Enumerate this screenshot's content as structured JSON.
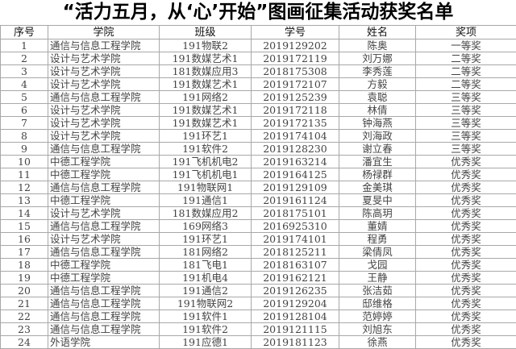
{
  "title": "“活力五月，从‘心’开始”图画征集活动获奖名单",
  "headers": [
    "序号",
    "学院",
    "班级",
    "学号",
    "姓名",
    "奖项"
  ],
  "rows": [
    [
      "1",
      "通信与信息工程学院",
      "191物联2",
      "2019129202",
      "陈奥",
      "一等奖"
    ],
    [
      "2",
      "设计与艺术学院",
      "191数媒艺术1",
      "2019172119",
      "刘万娜",
      "二等奖"
    ],
    [
      "3",
      "设计与艺术学院",
      "181数媒应用3",
      "2018175308",
      "李秀莲",
      "二等奖"
    ],
    [
      "4",
      "设计与艺术学院",
      "191数媒艺术1",
      "2019172107",
      "方毅",
      "二等奖"
    ],
    [
      "5",
      "通信与信息工程学院",
      "191网络2",
      "2019125239",
      "袁聪",
      "三等奖"
    ],
    [
      "6",
      "设计与艺术学院",
      "191数媒艺术1",
      "2019172118",
      "林倩",
      "三等奖"
    ],
    [
      "7",
      "设计与艺术学院",
      "191数媒艺术1",
      "2019172135",
      "钟海燕",
      "三等奖"
    ],
    [
      "8",
      "设计与艺术学院",
      "191环艺1",
      "2019174104",
      "刘海政",
      "三等奖"
    ],
    [
      "9",
      "通信与信息工程学院",
      "191软件2",
      "2019128230",
      "谢立春",
      "三等奖"
    ],
    [
      "10",
      "中德工程学院",
      "191飞机机电2",
      "2019163214",
      "潘宜生",
      "优秀奖"
    ],
    [
      "11",
      "中德工程学院",
      "191飞机机电1",
      "2019164125",
      "杨禄群",
      "优秀奖"
    ],
    [
      "12",
      "通信与信息工程学院",
      "191物联网1",
      "2019129109",
      "金美琪",
      "优秀奖"
    ],
    [
      "13",
      "中德工程学院",
      "191通信1",
      "2019161124",
      "夏旻中",
      "优秀奖"
    ],
    [
      "14",
      "设计与艺术学院",
      "181数媒应用2",
      "2018175101",
      "陈高玥",
      "优秀奖"
    ],
    [
      "15",
      "通信与信息工程学院",
      "169网络3",
      "2016925310",
      "董婧",
      "优秀奖"
    ],
    [
      "16",
      "设计与艺术学院",
      "191环艺1",
      "2019174101",
      "程勇",
      "优秀奖"
    ],
    [
      "17",
      "通信与信息工程学院",
      "181网络2",
      "2018125211",
      "梁倩凤",
      "优秀奖"
    ],
    [
      "18",
      "中德工程学院",
      "181飞电1",
      "2018163107",
      "戈园",
      "优秀奖"
    ],
    [
      "19",
      "中德工程学院",
      "191机电4",
      "2019162121",
      "王静",
      "优秀奖"
    ],
    [
      "20",
      "通信与信息工程学院",
      "191通信2",
      "2019126235",
      "张洁茹",
      "优秀奖"
    ],
    [
      "21",
      "通信与信息工程学院",
      "191物联网2",
      "2019129204",
      "邸维格",
      "优秀奖"
    ],
    [
      "22",
      "通信与信息工程学院",
      "191软件1",
      "2019128104",
      "范婷婷",
      "优秀奖"
    ],
    [
      "23",
      "通信与信息工程学院",
      "191软件2",
      "2019121115",
      "刘旭东",
      "优秀奖"
    ],
    [
      "24",
      "外语学院",
      "191应德1",
      "2019181123",
      "徐燕",
      "优秀奖"
    ]
  ]
}
